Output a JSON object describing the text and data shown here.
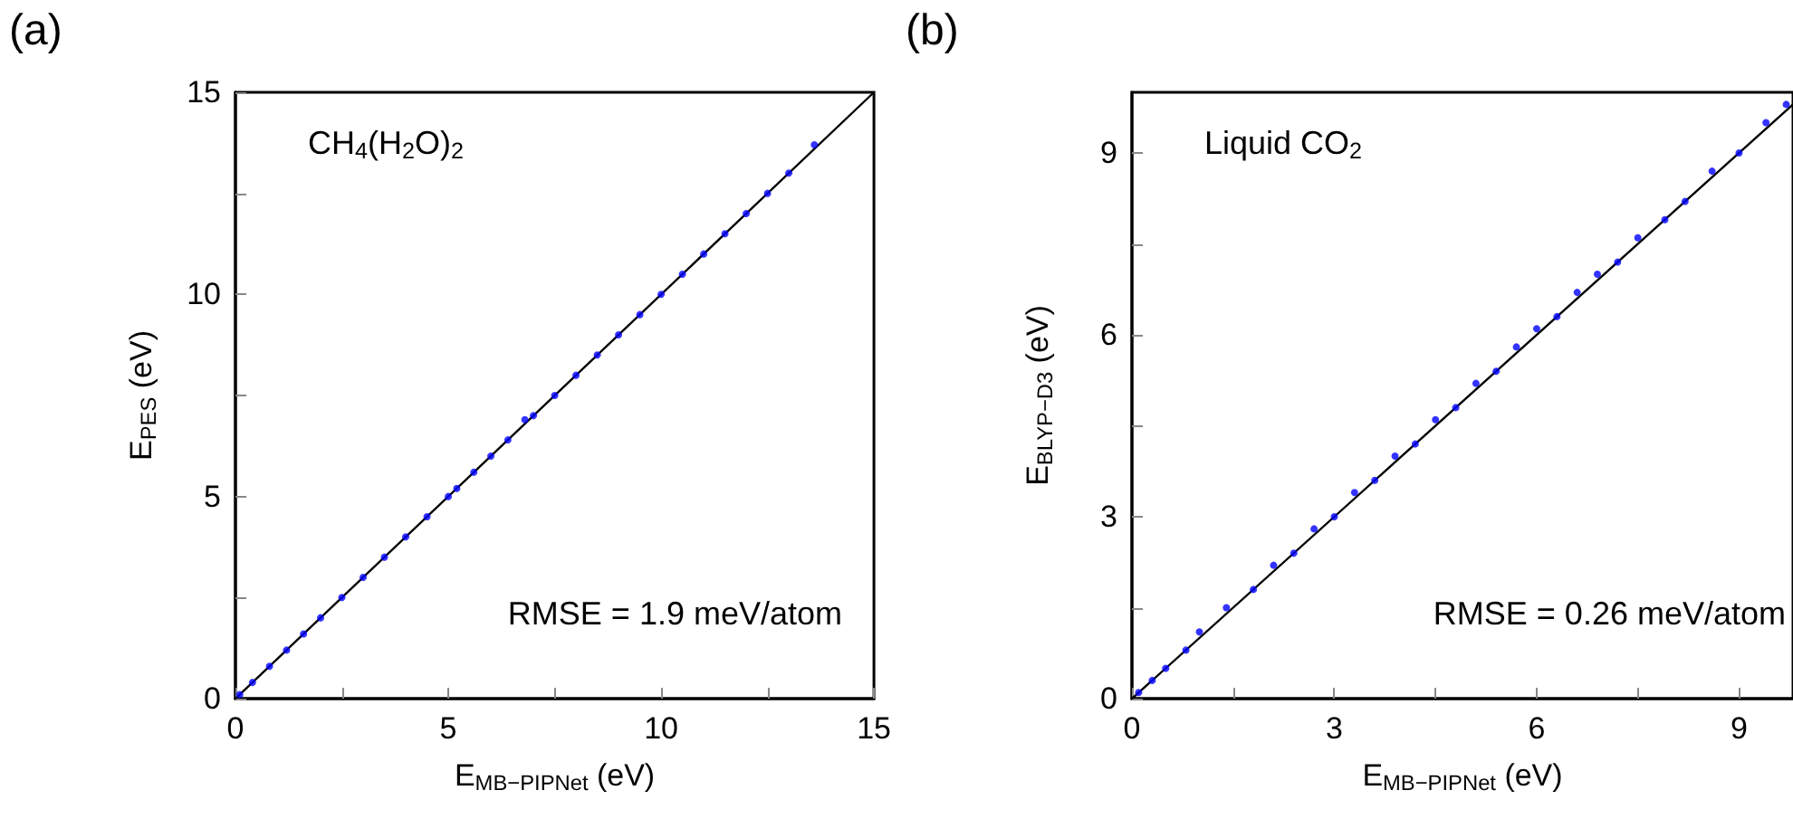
{
  "chart_data": [
    {
      "type": "scatter",
      "title": "(a)",
      "xlabel": "E$_{MB−PIPNet}$ (eV)",
      "ylabel": "E$_{PES}$ (eV)",
      "annotations": [
        "CH$_{4}$(H$_{2}$O)$_{2}$",
        "RMSE = 1.9 meV/atom"
      ],
      "xlim": [
        0,
        15
      ],
      "ylim": [
        0,
        15
      ],
      "xticks": [
        0,
        {
          "value": 2.5,
          "label": null
        },
        5,
        {
          "value": 7.5,
          "label": null
        },
        10,
        {
          "value": 12.5,
          "label": null
        },
        15
      ],
      "yticks": [
        0,
        {
          "value": 2.5,
          "label": null
        },
        5,
        {
          "value": 7.5,
          "label": null
        },
        10,
        {
          "value": 12.5,
          "label": null
        },
        15
      ],
      "series": [
        {
          "marker": "circle",
          "color": "#0000ff",
          "x": [
            0.1,
            0.4,
            0.8,
            1.2,
            1.6,
            2.0,
            2.5,
            3.0,
            3.5,
            4.0,
            4.5,
            5.0,
            5.2,
            5.6,
            6.0,
            6.4,
            6.8,
            7.0,
            7.5,
            8.0,
            8.5,
            9.0,
            9.5,
            10.0,
            10.5,
            11.0,
            11.5,
            12.0,
            12.5,
            13.0,
            13.6
          ],
          "values": [
            0.1,
            0.4,
            0.8,
            1.2,
            1.6,
            2.0,
            2.5,
            3.0,
            3.5,
            4.0,
            4.5,
            5.0,
            5.2,
            5.6,
            6.0,
            6.4,
            6.9,
            7.0,
            7.5,
            8.0,
            8.5,
            9.0,
            9.5,
            10.0,
            10.5,
            11.0,
            11.5,
            12.0,
            12.5,
            13.0,
            13.7
          ]
        },
        {
          "type": "line",
          "marker": "none",
          "color": "#000000",
          "x": [
            0,
            15
          ],
          "values": [
            0,
            15
          ]
        }
      ]
    },
    {
      "type": "scatter",
      "title": "(b)",
      "xlabel": "E$_{MB−PIPNet}$ (eV)",
      "ylabel": "E$_{BLYP−D3}$ (eV)",
      "annotations": [
        "Liquid CO$_{2}$",
        "RMSE = 0.26 meV/atom"
      ],
      "xlim": [
        0,
        9.8
      ],
      "ylim": [
        0,
        10
      ],
      "xticks": [
        0,
        {
          "value": 1.5,
          "label": null
        },
        3,
        {
          "value": 4.5,
          "label": null
        },
        6,
        {
          "value": 7.5,
          "label": null
        },
        9
      ],
      "yticks": [
        0,
        {
          "value": 1.5,
          "label": null
        },
        3,
        {
          "value": 4.5,
          "label": null
        },
        6,
        {
          "value": 7.5,
          "label": null
        },
        9
      ],
      "series": [
        {
          "marker": "circle",
          "color": "#0000ff",
          "x": [
            0.1,
            0.3,
            0.5,
            0.8,
            1.0,
            1.4,
            1.8,
            2.1,
            2.4,
            2.7,
            3.0,
            3.3,
            3.6,
            3.9,
            4.2,
            4.5,
            4.8,
            5.1,
            5.4,
            5.7,
            6.0,
            6.3,
            6.6,
            6.9,
            7.2,
            7.5,
            7.9,
            8.2,
            8.6,
            9.0,
            9.4,
            9.7
          ],
          "values": [
            0.1,
            0.3,
            0.5,
            0.8,
            1.1,
            1.5,
            1.8,
            2.2,
            2.4,
            2.8,
            3.0,
            3.4,
            3.6,
            4.0,
            4.2,
            4.6,
            4.8,
            5.2,
            5.4,
            5.8,
            6.1,
            6.3,
            6.7,
            7.0,
            7.2,
            7.6,
            7.9,
            8.2,
            8.7,
            9.0,
            9.5,
            9.8
          ]
        },
        {
          "type": "line",
          "marker": "none",
          "color": "#000000",
          "x": [
            0,
            9.8
          ],
          "values": [
            0,
            9.8
          ]
        }
      ]
    }
  ]
}
